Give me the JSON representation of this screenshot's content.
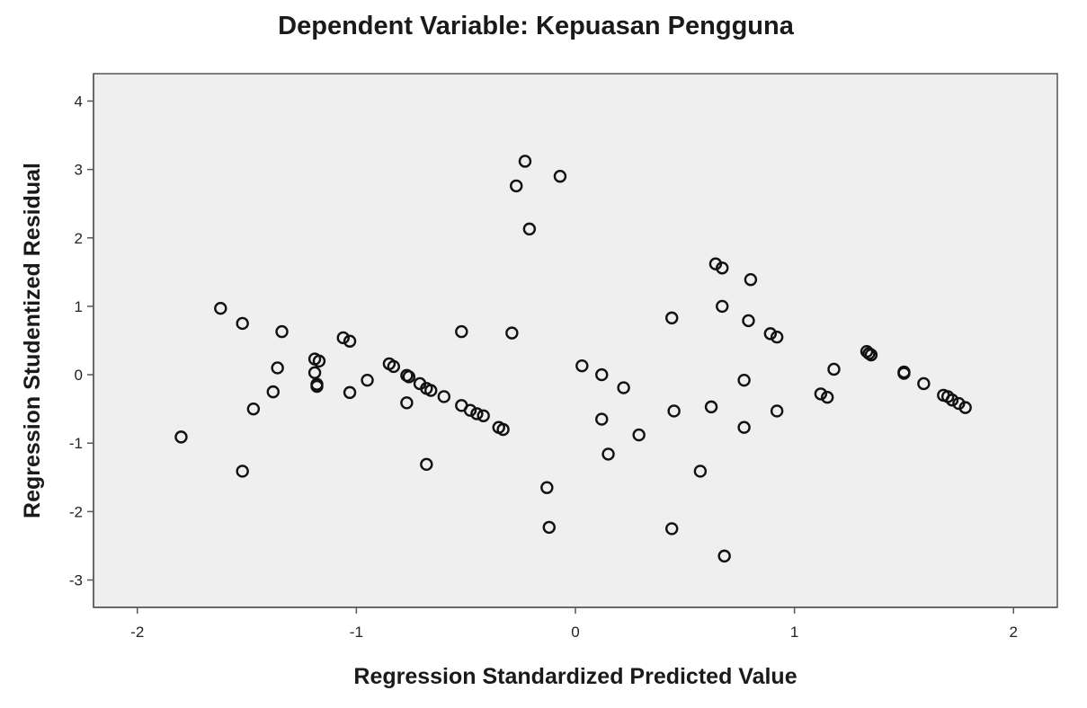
{
  "chart_data": {
    "type": "scatter",
    "title": "Dependent Variable: Kepuasan Pengguna",
    "xlabel": "Regression Standardized Predicted Value",
    "ylabel": "Regression Studentized Residual",
    "xlim": [
      -2.2,
      2.2
    ],
    "ylim": [
      -3.4,
      4.4
    ],
    "xticks": [
      -2,
      -1,
      0,
      1,
      2
    ],
    "xtick_labels": [
      "-2",
      "-1",
      "0",
      "1",
      "2"
    ],
    "yticks": [
      -3,
      -2,
      -1,
      0,
      1,
      2,
      3,
      4
    ],
    "ytick_labels": [
      "-3",
      "-2",
      "-1",
      "0",
      "1",
      "2",
      "3",
      "4"
    ],
    "grid": false,
    "colors": {
      "plot_background": "#efefef",
      "frame": "#555555",
      "marker": "#111111"
    },
    "points": [
      {
        "x": -1.8,
        "y": -0.91
      },
      {
        "x": -1.62,
        "y": 0.97
      },
      {
        "x": -1.52,
        "y": 0.75
      },
      {
        "x": -1.52,
        "y": -1.41
      },
      {
        "x": -1.47,
        "y": -0.5
      },
      {
        "x": -1.38,
        "y": -0.25
      },
      {
        "x": -1.36,
        "y": 0.1
      },
      {
        "x": -1.34,
        "y": 0.63
      },
      {
        "x": -1.19,
        "y": 0.23
      },
      {
        "x": -1.17,
        "y": 0.2
      },
      {
        "x": -1.19,
        "y": 0.03
      },
      {
        "x": -1.18,
        "y": -0.14
      },
      {
        "x": -1.18,
        "y": -0.17
      },
      {
        "x": -1.06,
        "y": 0.54
      },
      {
        "x": -1.03,
        "y": 0.49
      },
      {
        "x": -1.03,
        "y": -0.26
      },
      {
        "x": -0.95,
        "y": -0.08
      },
      {
        "x": -0.85,
        "y": 0.16
      },
      {
        "x": -0.83,
        "y": 0.12
      },
      {
        "x": -0.77,
        "y": -0.01
      },
      {
        "x": -0.76,
        "y": -0.03
      },
      {
        "x": -0.77,
        "y": -0.41
      },
      {
        "x": -0.71,
        "y": -0.13
      },
      {
        "x": -0.68,
        "y": -0.2
      },
      {
        "x": -0.66,
        "y": -0.23
      },
      {
        "x": -0.68,
        "y": -1.31
      },
      {
        "x": -0.6,
        "y": -0.32
      },
      {
        "x": -0.52,
        "y": 0.63
      },
      {
        "x": -0.52,
        "y": -0.45
      },
      {
        "x": -0.48,
        "y": -0.52
      },
      {
        "x": -0.45,
        "y": -0.57
      },
      {
        "x": -0.42,
        "y": -0.6
      },
      {
        "x": -0.35,
        "y": -0.77
      },
      {
        "x": -0.33,
        "y": -0.8
      },
      {
        "x": -0.29,
        "y": 0.61
      },
      {
        "x": -0.27,
        "y": 2.76
      },
      {
        "x": -0.23,
        "y": 3.12
      },
      {
        "x": -0.21,
        "y": 2.13
      },
      {
        "x": -0.07,
        "y": 2.9
      },
      {
        "x": -0.13,
        "y": -1.65
      },
      {
        "x": -0.12,
        "y": -2.23
      },
      {
        "x": 0.03,
        "y": 0.13
      },
      {
        "x": 0.12,
        "y": 0.0
      },
      {
        "x": 0.12,
        "y": -0.65
      },
      {
        "x": 0.15,
        "y": -1.16
      },
      {
        "x": 0.22,
        "y": -0.19
      },
      {
        "x": 0.29,
        "y": -0.88
      },
      {
        "x": 0.44,
        "y": 0.83
      },
      {
        "x": 0.45,
        "y": -0.53
      },
      {
        "x": 0.44,
        "y": -2.25
      },
      {
        "x": 0.57,
        "y": -1.41
      },
      {
        "x": 0.62,
        "y": -0.47
      },
      {
        "x": 0.64,
        "y": 1.62
      },
      {
        "x": 0.67,
        "y": 1.56
      },
      {
        "x": 0.67,
        "y": 1.0
      },
      {
        "x": 0.68,
        "y": -2.65
      },
      {
        "x": 0.77,
        "y": -0.08
      },
      {
        "x": 0.77,
        "y": -0.77
      },
      {
        "x": 0.79,
        "y": 0.79
      },
      {
        "x": 0.8,
        "y": 1.39
      },
      {
        "x": 0.89,
        "y": 0.6
      },
      {
        "x": 0.92,
        "y": 0.55
      },
      {
        "x": 0.92,
        "y": -0.53
      },
      {
        "x": 1.12,
        "y": -0.28
      },
      {
        "x": 1.15,
        "y": -0.33
      },
      {
        "x": 1.18,
        "y": 0.08
      },
      {
        "x": 1.33,
        "y": 0.34
      },
      {
        "x": 1.34,
        "y": 0.31
      },
      {
        "x": 1.35,
        "y": 0.29
      },
      {
        "x": 1.5,
        "y": 0.04
      },
      {
        "x": 1.5,
        "y": 0.02
      },
      {
        "x": 1.59,
        "y": -0.13
      },
      {
        "x": 1.68,
        "y": -0.3
      },
      {
        "x": 1.7,
        "y": -0.32
      },
      {
        "x": 1.72,
        "y": -0.37
      },
      {
        "x": 1.75,
        "y": -0.42
      },
      {
        "x": 1.78,
        "y": -0.48
      }
    ]
  }
}
